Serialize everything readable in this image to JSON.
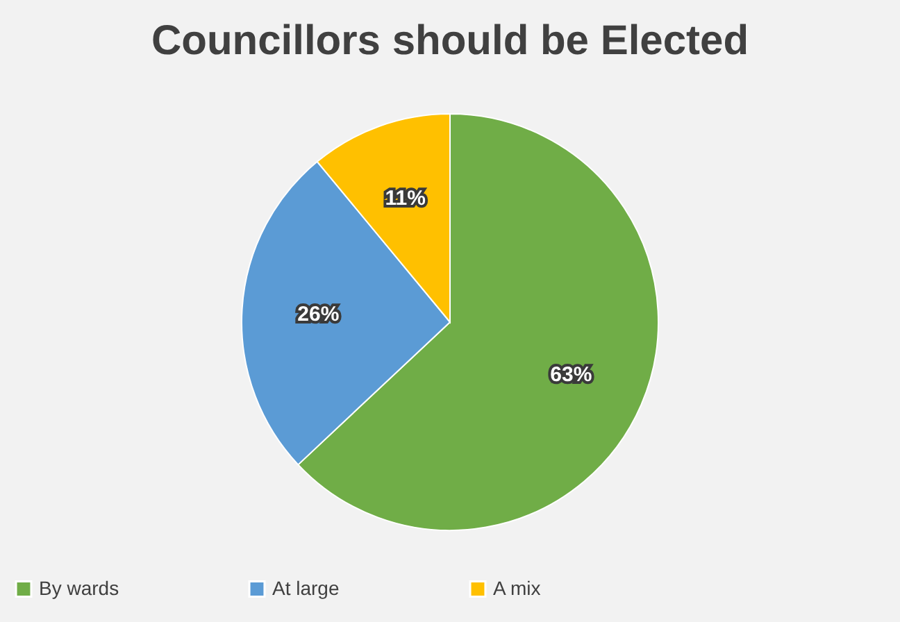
{
  "chart_data": {
    "type": "pie",
    "title": "Councillors should be Elected",
    "categories": [
      "By wards",
      "At large",
      "A mix"
    ],
    "values": [
      63,
      26,
      11
    ],
    "colors": [
      "#70ad47",
      "#5b9bd5",
      "#ffc000"
    ],
    "value_labels": [
      "63%",
      "26%",
      "11%"
    ],
    "legend": "bottom"
  }
}
